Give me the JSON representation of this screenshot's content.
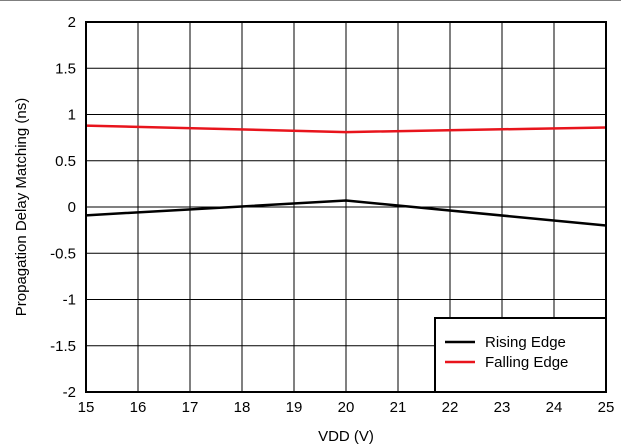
{
  "chart_data": {
    "type": "line",
    "xlabel": "VDD (V)",
    "ylabel": "Propagation Delay Matching (ns)",
    "xlim": [
      15,
      25
    ],
    "ylim": [
      -2,
      2
    ],
    "xticks": [
      15,
      16,
      17,
      18,
      19,
      20,
      21,
      22,
      23,
      24,
      25
    ],
    "yticks": [
      2,
      1.5,
      1,
      0.5,
      0,
      -0.5,
      -1,
      -1.5,
      -2
    ],
    "ytick_labels": [
      "2",
      "1.5",
      "1",
      "0.5",
      "0",
      "-0.5",
      "-1",
      "-1.5",
      "-2"
    ],
    "grid": true,
    "legend_position": "bottom-right",
    "series": [
      {
        "name": "Rising Edge",
        "color": "#000000",
        "x": [
          15,
          20,
          25
        ],
        "y": [
          -0.09,
          0.07,
          -0.2
        ]
      },
      {
        "name": "Falling Edge",
        "color": "#e8141c",
        "x": [
          15,
          20,
          25
        ],
        "y": [
          0.88,
          0.81,
          0.86
        ]
      }
    ]
  }
}
